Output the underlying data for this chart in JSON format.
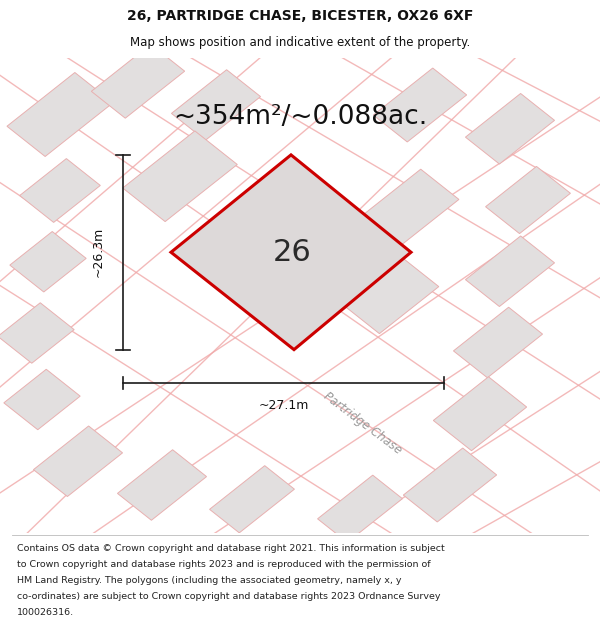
{
  "title_line1": "26, PARTRIDGE CHASE, BICESTER, OX26 6XF",
  "title_line2": "Map shows position and indicative extent of the property.",
  "area_label": "~354m²/~0.088ac.",
  "plot_number": "26",
  "dim_vertical": "~26.3m",
  "dim_horizontal": "~27.1m",
  "street_label": "Partridge Chase",
  "footer_text": "Contains OS data © Crown copyright and database right 2021. This information is subject to Crown copyright and database rights 2023 and is reproduced with the permission of HM Land Registry. The polygons (including the associated geometry, namely x, y co-ordinates) are subject to Crown copyright and database rights 2023 Ordnance Survey 100026316.",
  "map_bg": "#eeecec",
  "plot_fill": "#ddd9d9",
  "plot_edge_color": "#cc0000",
  "plot_edge_width": 2.2,
  "neighbor_fill": "#e2dfdf",
  "neighbor_edge": "#e8b0b0",
  "road_color": "#f0a8a8",
  "dim_line_color": "#1a1a1a",
  "title_fontsize": 10,
  "subtitle_fontsize": 8.5,
  "area_fontsize": 19,
  "plot_num_fontsize": 22,
  "dim_fontsize": 9,
  "street_fontsize": 8.5,
  "footer_fontsize": 6.8,
  "figsize": [
    6.0,
    6.25
  ],
  "dpi": 100
}
